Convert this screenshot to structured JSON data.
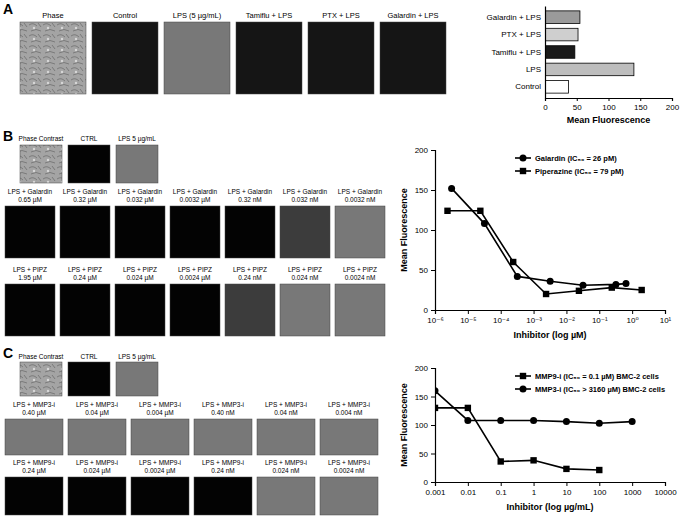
{
  "panels": [
    {
      "label": "A",
      "images": [
        "Phase",
        "Control",
        "LPS (5 µg/mL)",
        "Tamiflu + LPS",
        "PTX + LPS",
        "Galardin + LPS"
      ]
    },
    {
      "label": "B",
      "images": [
        "Phase Contrast",
        "CTRL",
        "LPS 5 µg/mL"
      ],
      "rows": [
        {
          "prefix": "LPS + Galardin",
          "doses": [
            "0.65 µM",
            "0.32 µM",
            "0.032 µM",
            "0.0032 µM",
            "0.32 nM",
            "0.032 nM",
            "0.0032 nM"
          ]
        },
        {
          "prefix": "LPS + PIPZ",
          "doses": [
            "1.95 µM",
            "0.24 µM",
            "0.024 µM",
            "0.0024 µM",
            "0.24 nM",
            "0.024 nM",
            "0.0024 nM"
          ]
        }
      ]
    },
    {
      "label": "C",
      "images": [
        "Phase Contrast",
        "CTRL",
        "LPS 5 µg/mL"
      ],
      "rows": [
        {
          "prefix": "LPS + MMP3-i",
          "doses": [
            "0.40 µM",
            "0.04 µM",
            "0.004 µM",
            "0.40 nM",
            "0.04 nM",
            "0.004 nM"
          ]
        },
        {
          "prefix": "LPS + MMP9-i",
          "doses": [
            "0.24 µM",
            "0.024 µM",
            "0.0024 µM",
            "0.24 nM",
            "0.024 nM",
            "0.0024 nM"
          ]
        }
      ]
    }
  ],
  "chart_data": [
    {
      "type": "bar",
      "orientation": "horizontal",
      "categories": [
        "Galardin + LPS",
        "PTX + LPS",
        "Tamiflu + LPS",
        "LPS",
        "Control"
      ],
      "values": [
        55,
        52,
        47,
        140,
        37
      ],
      "colors": [
        "#9a9a9a",
        "#cfcfcf",
        "#1a1a1a",
        "#bdbdbd",
        "#ffffff"
      ],
      "x_label": "Mean Fluorescence",
      "xlim": [
        0,
        200
      ],
      "xticks": [
        0,
        50,
        100,
        150,
        200
      ],
      "grid": false
    },
    {
      "type": "line",
      "log": "x",
      "legend": "top-right",
      "grid": false,
      "x_label": "Inhibitor (log µM)",
      "y_label": "Mean Fluorescence",
      "xlim": [
        1e-06,
        10
      ],
      "xticks": [
        {
          "value": 1e-06,
          "label": "10⁻⁶"
        },
        {
          "value": 1e-05,
          "label": "10⁻⁵"
        },
        {
          "value": 0.0001,
          "label": "10⁻⁴"
        },
        {
          "value": 0.001,
          "label": "10⁻³"
        },
        {
          "value": 0.01,
          "label": "10⁻²"
        },
        {
          "value": 0.1,
          "label": "10⁻¹"
        },
        {
          "value": 1,
          "label": "10⁰"
        },
        {
          "value": 10,
          "label": "10¹"
        }
      ],
      "ylim": [
        0,
        200
      ],
      "yticks": [
        0,
        50,
        100,
        150,
        200
      ],
      "series": [
        {
          "name": "Galardin (IC₅₀ = 26 pM)",
          "color": "#000000",
          "marker": "circle",
          "x": [
            3.2e-06,
            3.2e-05,
            0.00032,
            0.0032,
            0.032,
            0.32,
            0.65
          ],
          "values": [
            152,
            108,
            42,
            36,
            31,
            32,
            33
          ]
        },
        {
          "name": "Piperazine (IC₅₀ = 79 pM)",
          "color": "#000000",
          "marker": "square",
          "x": [
            2.4e-06,
            2.4e-05,
            0.00024,
            0.0024,
            0.024,
            0.24,
            1.95
          ],
          "values": [
            124,
            124,
            60,
            20,
            24,
            28,
            25
          ]
        }
      ]
    },
    {
      "type": "line",
      "log": "x",
      "legend": "top-right",
      "grid": false,
      "x_label": "Inhibitor (log µg/mL)",
      "y_label": "Mean Fluorescence",
      "xlim": [
        0.001,
        10000
      ],
      "xticks": [
        0.001,
        0.01,
        0.1,
        1,
        10,
        100,
        1000,
        10000
      ],
      "ylim": [
        0,
        200
      ],
      "yticks": [
        0,
        50,
        100,
        150,
        200
      ],
      "series": [
        {
          "name": "MMP9-i (IC₅₀ = 0.1 µM) BMC-2 cells",
          "color": "#000000",
          "marker": "square",
          "x": [
            0.001,
            0.01,
            0.1,
            1,
            10,
            100
          ],
          "values": [
            130,
            130,
            36,
            38,
            23,
            21
          ]
        },
        {
          "name": "MMP3-i (IC₅₀ > 3160 µM) BMC-2 cells",
          "color": "#000000",
          "marker": "circle",
          "x": [
            0.001,
            0.01,
            0.1,
            1,
            10,
            100,
            1000
          ],
          "values": [
            160,
            108,
            108,
            108,
            106,
            103,
            106
          ]
        }
      ]
    }
  ]
}
